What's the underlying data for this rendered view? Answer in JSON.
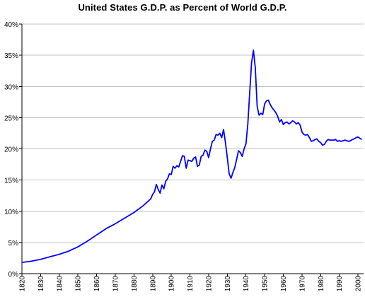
{
  "chart_data": {
    "type": "line",
    "title": "United States G.D.P. as Percent of World G.D.P.",
    "xlabel": "",
    "ylabel": "",
    "xlim": [
      1820,
      2003
    ],
    "ylim": [
      0,
      40
    ],
    "grid": true,
    "legend": "none",
    "y_ticks": [
      {
        "value": 0,
        "label": "0%"
      },
      {
        "value": 5,
        "label": "5%"
      },
      {
        "value": 10,
        "label": "10%"
      },
      {
        "value": 15,
        "label": "15%"
      },
      {
        "value": 20,
        "label": "20%"
      },
      {
        "value": 25,
        "label": "25%"
      },
      {
        "value": 30,
        "label": "30%"
      },
      {
        "value": 35,
        "label": "35%"
      },
      {
        "value": 40,
        "label": "40%"
      }
    ],
    "x_ticks": [
      {
        "value": 1820,
        "label": "1820"
      },
      {
        "value": 1830,
        "label": "1830"
      },
      {
        "value": 1840,
        "label": "1840"
      },
      {
        "value": 1850,
        "label": "1850"
      },
      {
        "value": 1860,
        "label": "1860"
      },
      {
        "value": 1870,
        "label": "1870"
      },
      {
        "value": 1880,
        "label": "1880"
      },
      {
        "value": 1890,
        "label": "1890"
      },
      {
        "value": 1900,
        "label": "1900"
      },
      {
        "value": 1910,
        "label": "1910"
      },
      {
        "value": 1920,
        "label": "1920"
      },
      {
        "value": 1930,
        "label": "1930"
      },
      {
        "value": 1940,
        "label": "1940"
      },
      {
        "value": 1950,
        "label": "1950"
      },
      {
        "value": 1960,
        "label": "1960"
      },
      {
        "value": 1970,
        "label": "1970"
      },
      {
        "value": 1980,
        "label": "1980"
      },
      {
        "value": 1990,
        "label": "1990"
      },
      {
        "value": 2000,
        "label": "2000"
      }
    ],
    "colors": {
      "line": "#0000ff",
      "grid": "#c0c0c0",
      "axis": "#000000"
    },
    "series": [
      {
        "x": [
          1820,
          1825,
          1830,
          1835,
          1840,
          1845,
          1850,
          1855,
          1860,
          1865,
          1870,
          1875,
          1880,
          1885,
          1889,
          1890,
          1891,
          1892,
          1893,
          1894,
          1895,
          1896,
          1897,
          1898,
          1899,
          1900,
          1901,
          1902,
          1903,
          1904,
          1905,
          1906,
          1907,
          1908,
          1909,
          1910,
          1911,
          1912,
          1913,
          1914,
          1915,
          1916,
          1917,
          1918,
          1919,
          1920,
          1921,
          1922,
          1923,
          1924,
          1925,
          1926,
          1927,
          1928,
          1929,
          1930,
          1931,
          1932,
          1933,
          1934,
          1935,
          1936,
          1937,
          1938,
          1939,
          1940,
          1941,
          1942,
          1943,
          1944,
          1945,
          1946,
          1947,
          1948,
          1949,
          1950,
          1951,
          1952,
          1953,
          1954,
          1955,
          1956,
          1957,
          1958,
          1959,
          1960,
          1961,
          1962,
          1963,
          1964,
          1965,
          1966,
          1967,
          1968,
          1969,
          1970,
          1971,
          1972,
          1973,
          1974,
          1975,
          1976,
          1977,
          1978,
          1979,
          1980,
          1981,
          1982,
          1983,
          1984,
          1985,
          1986,
          1987,
          1988,
          1989,
          1990,
          1991,
          1992,
          1993,
          1994,
          1995,
          1996,
          1997,
          1998,
          1999,
          2000,
          2001,
          2002
        ],
        "values": [
          1.8,
          2.0,
          2.3,
          2.7,
          3.1,
          3.6,
          4.3,
          5.2,
          6.2,
          7.2,
          8.0,
          8.9,
          9.8,
          10.9,
          12.0,
          12.7,
          13.1,
          14.3,
          13.5,
          12.9,
          14.2,
          13.6,
          14.8,
          15.2,
          16.0,
          15.9,
          17.2,
          16.9,
          17.3,
          17.1,
          18.0,
          18.9,
          18.8,
          16.9,
          18.2,
          18.1,
          18.0,
          18.5,
          18.7,
          17.2,
          17.4,
          18.8,
          19.0,
          19.8,
          19.6,
          18.6,
          20.0,
          21.2,
          21.4,
          22.3,
          22.2,
          22.5,
          21.8,
          23.1,
          21.0,
          18.6,
          16.0,
          15.3,
          16.2,
          17.0,
          18.3,
          19.7,
          19.4,
          18.8,
          20.0,
          20.8,
          24.0,
          29.0,
          33.8,
          35.8,
          33.0,
          26.8,
          25.4,
          25.7,
          25.5,
          27.2,
          27.7,
          27.8,
          27.1,
          26.6,
          26.2,
          25.8,
          25.2,
          24.3,
          24.7,
          23.9,
          24.2,
          24.3,
          24.0,
          24.2,
          24.5,
          24.3,
          24.0,
          24.2,
          23.8,
          22.7,
          22.3,
          22.2,
          22.3,
          21.8,
          21.2,
          21.3,
          21.5,
          21.6,
          21.2,
          21.0,
          20.6,
          20.7,
          21.2,
          21.5,
          21.4,
          21.4,
          21.4,
          21.5,
          21.2,
          21.3,
          21.2,
          21.3,
          21.4,
          21.3,
          21.2,
          21.3,
          21.5,
          21.6,
          21.8,
          21.9,
          21.7,
          21.5
        ]
      }
    ]
  }
}
